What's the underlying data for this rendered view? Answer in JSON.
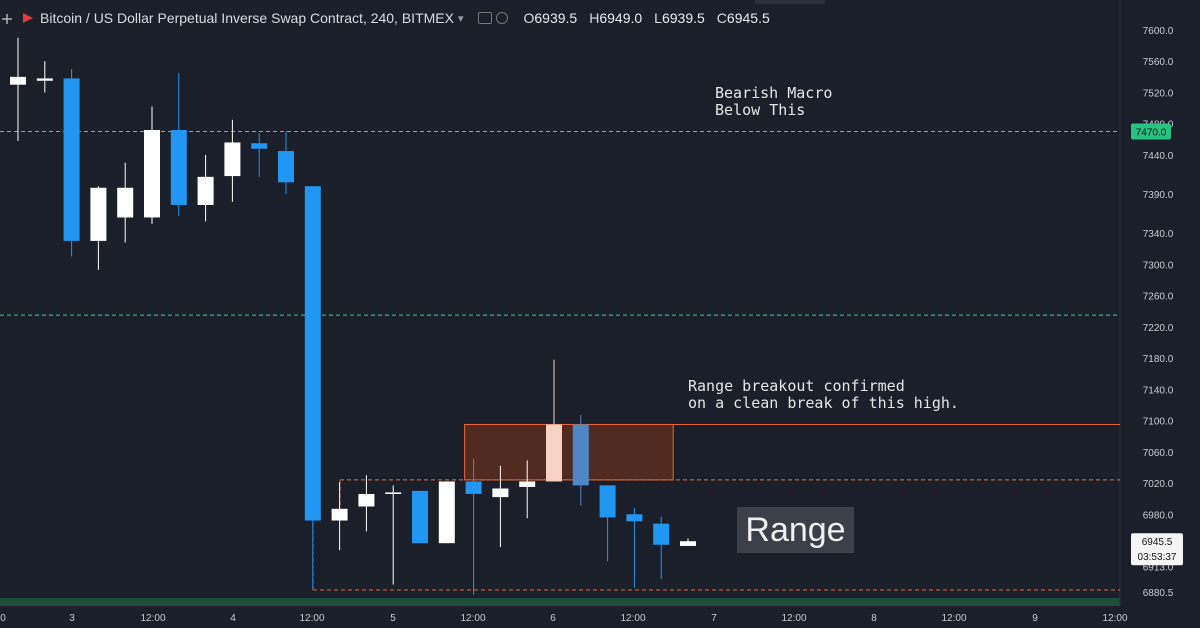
{
  "header": {
    "symbol_title": "Bitcoin / US Dollar Perpetual Inverse Swap Contract, 240, BITMEX",
    "open_label": "O",
    "open": "6939.5",
    "high_label": "H",
    "high": "6949.0",
    "low_label": "L",
    "low": "6939.5",
    "close_label": "C",
    "close": "6945.5",
    "icons": [
      "plus-icon",
      "bitmex-logo-icon",
      "caret-down-icon",
      "eye-icon",
      "settings-icon",
      "close-icon"
    ]
  },
  "annotations": {
    "bearish_macro": "Bearish Macro\nBelow This",
    "range_breakout": "Range breakout confirmed\non a clean break of this high.",
    "range": "Range"
  },
  "price_labels": {
    "level_7470": "7470.0",
    "last_price": "6945.5",
    "countdown": "03:53:37"
  },
  "colors": {
    "background": "#1b1f29",
    "up_candle": "#ffffff",
    "down_candle": "#2196f3",
    "level_line": "#3fd08a",
    "range_line": "#e8663a",
    "range_box_fill": "#5a2e1f",
    "label_green": "#26c281",
    "bottom_band": "#1e4d3a"
  },
  "chart_data": {
    "type": "candlestick",
    "y_ticks": [
      "7600.0",
      "7560.0",
      "7520.0",
      "7480.0",
      "7440.0",
      "7390.0",
      "7340.0",
      "7300.0",
      "7260.0",
      "7220.0",
      "7180.0",
      "7140.0",
      "7100.0",
      "7060.0",
      "7020.0",
      "6980.0",
      "6913.0",
      "6880.5"
    ],
    "x_ticks": [
      "0",
      "3",
      "12:00",
      "4",
      "12:00",
      "5",
      "12:00",
      "6",
      "12:00",
      "7",
      "12:00",
      "8",
      "12:00",
      "9",
      "12:00"
    ],
    "ylim": [
      6870,
      7640
    ],
    "candles": [
      {
        "o": 7530,
        "h": 7590,
        "l": 7458,
        "c": 7540
      },
      {
        "o": 7535,
        "h": 7560,
        "l": 7520,
        "c": 7538
      },
      {
        "o": 7538,
        "h": 7550,
        "l": 7310,
        "c": 7330
      },
      {
        "o": 7330,
        "h": 7400,
        "l": 7293,
        "c": 7398
      },
      {
        "o": 7360,
        "h": 7430,
        "l": 7328,
        "c": 7398
      },
      {
        "o": 7360,
        "h": 7502,
        "l": 7352,
        "c": 7472
      },
      {
        "o": 7472,
        "h": 7545,
        "l": 7362,
        "c": 7376
      },
      {
        "o": 7376,
        "h": 7440,
        "l": 7355,
        "c": 7412
      },
      {
        "o": 7413,
        "h": 7485,
        "l": 7380,
        "c": 7456
      },
      {
        "o": 7455,
        "h": 7468,
        "l": 7412,
        "c": 7448
      },
      {
        "o": 7445,
        "h": 7470,
        "l": 7390,
        "c": 7405
      },
      {
        "o": 7400,
        "h": 7400,
        "l": 6885,
        "c": 6972
      },
      {
        "o": 6972,
        "h": 7021,
        "l": 6934,
        "c": 6987
      },
      {
        "o": 6990,
        "h": 7030,
        "l": 6958,
        "c": 7006
      },
      {
        "o": 7006,
        "h": 7017,
        "l": 6890,
        "c": 7008
      },
      {
        "o": 7010,
        "h": 7010,
        "l": 6943,
        "c": 6943
      },
      {
        "o": 6943,
        "h": 7022,
        "l": 6943,
        "c": 7022
      },
      {
        "o": 7022,
        "h": 7051,
        "l": 6877,
        "c": 7006
      },
      {
        "o": 7002,
        "h": 7042,
        "l": 6938,
        "c": 7013
      },
      {
        "o": 7015,
        "h": 7049,
        "l": 6975,
        "c": 7022
      },
      {
        "o": 7022,
        "h": 7178,
        "l": 7022,
        "c": 7095
      },
      {
        "o": 7095,
        "h": 7107,
        "l": 6991,
        "c": 7017
      },
      {
        "o": 7017,
        "h": 7017,
        "l": 6920,
        "c": 6976
      },
      {
        "o": 6980,
        "h": 6988,
        "l": 6886,
        "c": 6971
      },
      {
        "o": 6968,
        "h": 6977,
        "l": 6897,
        "c": 6941
      },
      {
        "o": 6939.5,
        "h": 6949,
        "l": 6939.5,
        "c": 6945.5
      }
    ],
    "levels": [
      {
        "price": 7470,
        "style": "dashed",
        "color": "#3fd08a"
      },
      {
        "price": 7235,
        "style": "dashed",
        "color": "#3fd08a"
      },
      {
        "price": 7095,
        "style": "solid",
        "color": "#e8663a"
      },
      {
        "price": 7024,
        "style": "dashed",
        "color": "#e8663a"
      },
      {
        "price": 6883,
        "style": "dashed",
        "color": "#e8663a"
      }
    ],
    "range_high_zone": {
      "from_candle": 17,
      "to_candle": 24,
      "top": 7095,
      "bottom": 7024
    }
  }
}
